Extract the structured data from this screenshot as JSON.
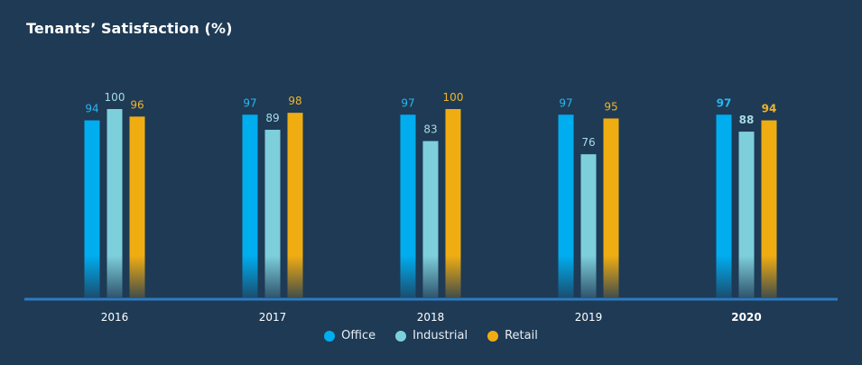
{
  "chart_data": {
    "type": "bar",
    "title": "Tenants’ Satisfaction (%)",
    "xlabel": "",
    "ylabel": "",
    "ylim": [
      0,
      100
    ],
    "grid": false,
    "legend_position": "bottom-center",
    "categories": [
      "2016",
      "2017",
      "2018",
      "2019",
      "2020"
    ],
    "highlight_category": "2020",
    "series": [
      {
        "name": "Office",
        "color": "#00adef",
        "label_color": "#29b6f0",
        "values": [
          94,
          97,
          97,
          97,
          97
        ]
      },
      {
        "name": "Industrial",
        "color": "#7ecfdc",
        "label_color": "#a8dbe4",
        "values": [
          100,
          89,
          83,
          76,
          88
        ]
      },
      {
        "name": "Retail",
        "color": "#f0ad12",
        "label_color": "#f0b429",
        "values": [
          96,
          98,
          100,
          95,
          94
        ]
      }
    ]
  },
  "colors": {
    "background": "#1e3a55",
    "axis": "#2d7bc0",
    "text": "#ffffff"
  }
}
